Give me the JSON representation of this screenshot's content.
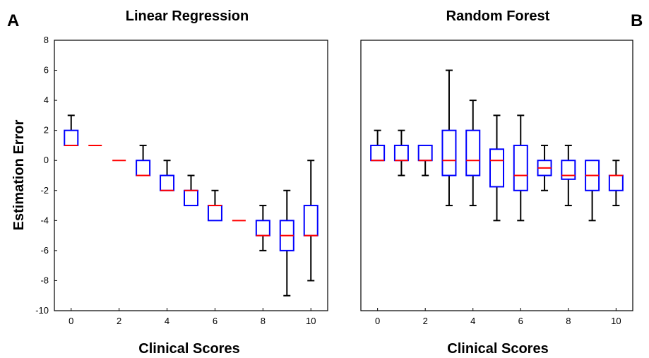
{
  "panel_labels": {
    "left": "A",
    "right": "B"
  },
  "chart_data": [
    {
      "type": "boxplot",
      "title": "Linear Regression",
      "xlabel": "Clinical Scores",
      "ylabel": "Estimation Error",
      "xlim": [
        -0.7,
        10.7
      ],
      "ylim": [
        -10,
        8
      ],
      "xticks": [
        0,
        2,
        4,
        6,
        8,
        10
      ],
      "yticks": [
        8,
        6,
        4,
        2,
        0,
        -2,
        -4,
        -6,
        -8,
        -10
      ],
      "grid": false,
      "colors": {
        "box": "#0000ff",
        "median": "#ff0000",
        "whisker": "#000000"
      },
      "boxes": [
        {
          "x": 0,
          "q1": 1,
          "median": 1,
          "q3": 2,
          "whisker_low": 1,
          "whisker_high": 3
        },
        {
          "x": 1,
          "q1": 1,
          "median": 1,
          "q3": 1,
          "whisker_low": 1,
          "whisker_high": 1
        },
        {
          "x": 2,
          "q1": 0,
          "median": 0,
          "q3": 0,
          "whisker_low": 0,
          "whisker_high": 0
        },
        {
          "x": 3,
          "q1": -1,
          "median": -1,
          "q3": 0,
          "whisker_low": -1,
          "whisker_high": 1
        },
        {
          "x": 4,
          "q1": -2,
          "median": -2,
          "q3": -1,
          "whisker_low": -2,
          "whisker_high": 0
        },
        {
          "x": 5,
          "q1": -3,
          "median": -2,
          "q3": -2,
          "whisker_low": -3,
          "whisker_high": -1
        },
        {
          "x": 6,
          "q1": -4,
          "median": -3,
          "q3": -3,
          "whisker_low": -4,
          "whisker_high": -2
        },
        {
          "x": 7,
          "q1": -4,
          "median": -4,
          "q3": -4,
          "whisker_low": -4,
          "whisker_high": -4
        },
        {
          "x": 8,
          "q1": -5,
          "median": -5,
          "q3": -4,
          "whisker_low": -6,
          "whisker_high": -3
        },
        {
          "x": 9,
          "q1": -6,
          "median": -5,
          "q3": -4,
          "whisker_low": -9,
          "whisker_high": -2
        },
        {
          "x": 10,
          "q1": -5,
          "median": -5,
          "q3": -3,
          "whisker_low": -8,
          "whisker_high": 0
        }
      ]
    },
    {
      "type": "boxplot",
      "title": "Random Forest",
      "xlabel": "Clinical Scores",
      "ylabel": "",
      "xlim": [
        -0.7,
        10.7
      ],
      "ylim": [
        -10,
        8
      ],
      "xticks": [
        0,
        2,
        4,
        6,
        8,
        10
      ],
      "yticks": [],
      "grid": false,
      "colors": {
        "box": "#0000ff",
        "median": "#ff0000",
        "whisker": "#000000"
      },
      "boxes": [
        {
          "x": 0,
          "q1": 0,
          "median": 0,
          "q3": 1,
          "whisker_low": 0,
          "whisker_high": 2
        },
        {
          "x": 1,
          "q1": 0,
          "median": 0,
          "q3": 1,
          "whisker_low": -1,
          "whisker_high": 2
        },
        {
          "x": 2,
          "q1": 0,
          "median": 0,
          "q3": 1,
          "whisker_low": -1,
          "whisker_high": 1
        },
        {
          "x": 3,
          "q1": -1,
          "median": 0,
          "q3": 2,
          "whisker_low": -3,
          "whisker_high": 6
        },
        {
          "x": 4,
          "q1": -1,
          "median": 0,
          "q3": 2,
          "whisker_low": -3,
          "whisker_high": 4
        },
        {
          "x": 5,
          "q1": -1.75,
          "median": 0,
          "q3": 0.75,
          "whisker_low": -4,
          "whisker_high": 3
        },
        {
          "x": 6,
          "q1": -2,
          "median": -1,
          "q3": 1,
          "whisker_low": -4,
          "whisker_high": 3
        },
        {
          "x": 7,
          "q1": -1,
          "median": -0.5,
          "q3": 0,
          "whisker_low": -2,
          "whisker_high": 1
        },
        {
          "x": 8,
          "q1": -1.25,
          "median": -1,
          "q3": 0,
          "whisker_low": -3,
          "whisker_high": 1
        },
        {
          "x": 9,
          "q1": -2,
          "median": -1,
          "q3": 0,
          "whisker_low": -4,
          "whisker_high": 0
        },
        {
          "x": 10,
          "q1": -2,
          "median": -1,
          "q3": -1,
          "whisker_low": -3,
          "whisker_high": 0
        }
      ]
    }
  ]
}
